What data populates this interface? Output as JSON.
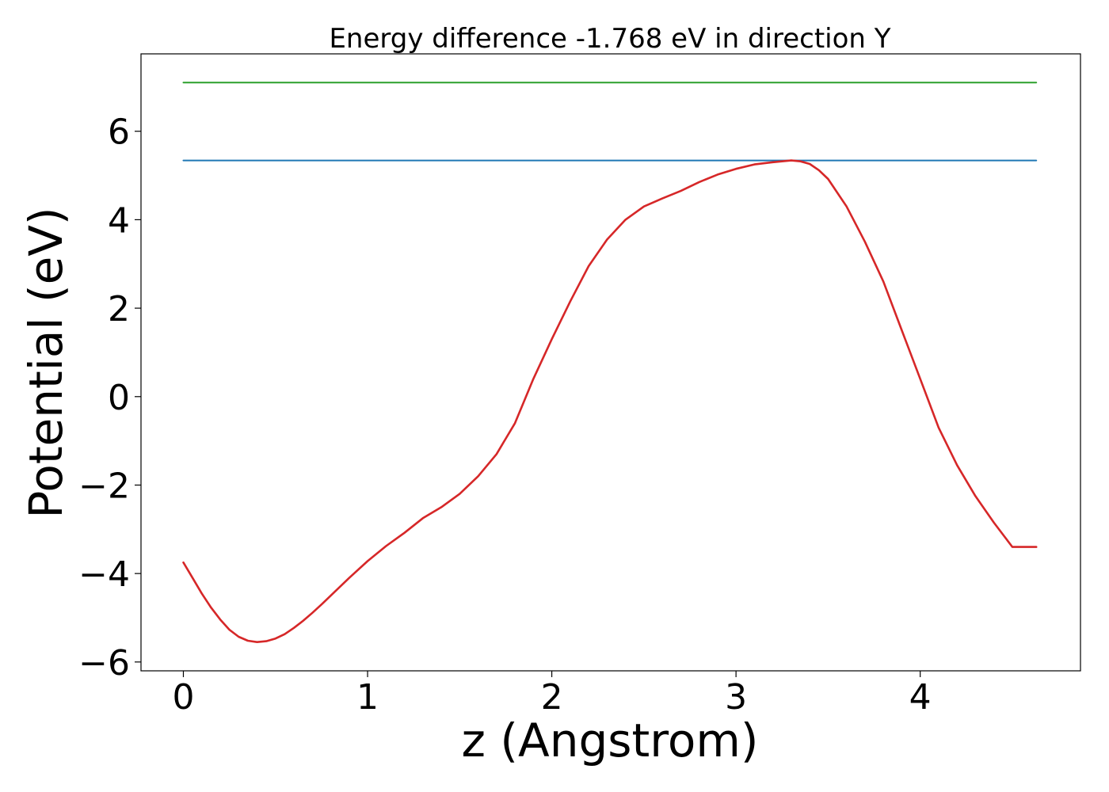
{
  "chart_data": {
    "type": "line",
    "title": "Energy difference -1.768 eV in direction Y",
    "xlabel": "z (Angstrom)",
    "ylabel": "Potential (eV)",
    "xlim": [
      -0.23,
      4.87
    ],
    "ylim": [
      -6.2,
      7.75
    ],
    "x_ticks": [
      0,
      1,
      2,
      3,
      4
    ],
    "x_tick_labels": [
      "0",
      "1",
      "2",
      "3",
      "4"
    ],
    "y_ticks": [
      -6,
      -4,
      -2,
      0,
      2,
      4,
      6
    ],
    "y_tick_labels": [
      "−6",
      "−4",
      "−2",
      "0",
      "2",
      "4",
      "6"
    ],
    "grid": false,
    "series": [
      {
        "color": "#2ca02c",
        "x": [
          0,
          4.63
        ],
        "y": [
          7.1,
          7.1
        ]
      },
      {
        "color": "#1f77b4",
        "x": [
          0,
          4.63
        ],
        "y": [
          5.34,
          5.34
        ]
      },
      {
        "color": "#d62728",
        "x": [
          0,
          0.05,
          0.1,
          0.15,
          0.2,
          0.25,
          0.3,
          0.35,
          0.4,
          0.45,
          0.5,
          0.55,
          0.6,
          0.65,
          0.7,
          0.75,
          0.8,
          0.9,
          1.0,
          1.1,
          1.2,
          1.3,
          1.4,
          1.5,
          1.6,
          1.7,
          1.8,
          1.9,
          2.0,
          2.1,
          2.2,
          2.3,
          2.4,
          2.5,
          2.6,
          2.7,
          2.8,
          2.9,
          3.0,
          3.1,
          3.2,
          3.3,
          3.35,
          3.4,
          3.45,
          3.5,
          3.6,
          3.7,
          3.8,
          3.9,
          4.0,
          4.1,
          4.2,
          4.3,
          4.4,
          4.5,
          4.63
        ],
        "y": [
          -3.75,
          -4.1,
          -4.45,
          -4.77,
          -5.04,
          -5.27,
          -5.43,
          -5.52,
          -5.55,
          -5.53,
          -5.47,
          -5.37,
          -5.23,
          -5.07,
          -4.89,
          -4.7,
          -4.5,
          -4.1,
          -3.72,
          -3.38,
          -3.08,
          -2.75,
          -2.5,
          -2.2,
          -1.8,
          -1.3,
          -0.6,
          0.4,
          1.3,
          2.15,
          2.95,
          3.55,
          4.0,
          4.3,
          4.48,
          4.65,
          4.85,
          5.02,
          5.15,
          5.25,
          5.3,
          5.34,
          5.32,
          5.26,
          5.12,
          4.92,
          4.3,
          3.5,
          2.6,
          1.5,
          0.4,
          -0.7,
          -1.55,
          -2.25,
          -2.85,
          -3.4,
          -3.4
        ]
      }
    ]
  }
}
